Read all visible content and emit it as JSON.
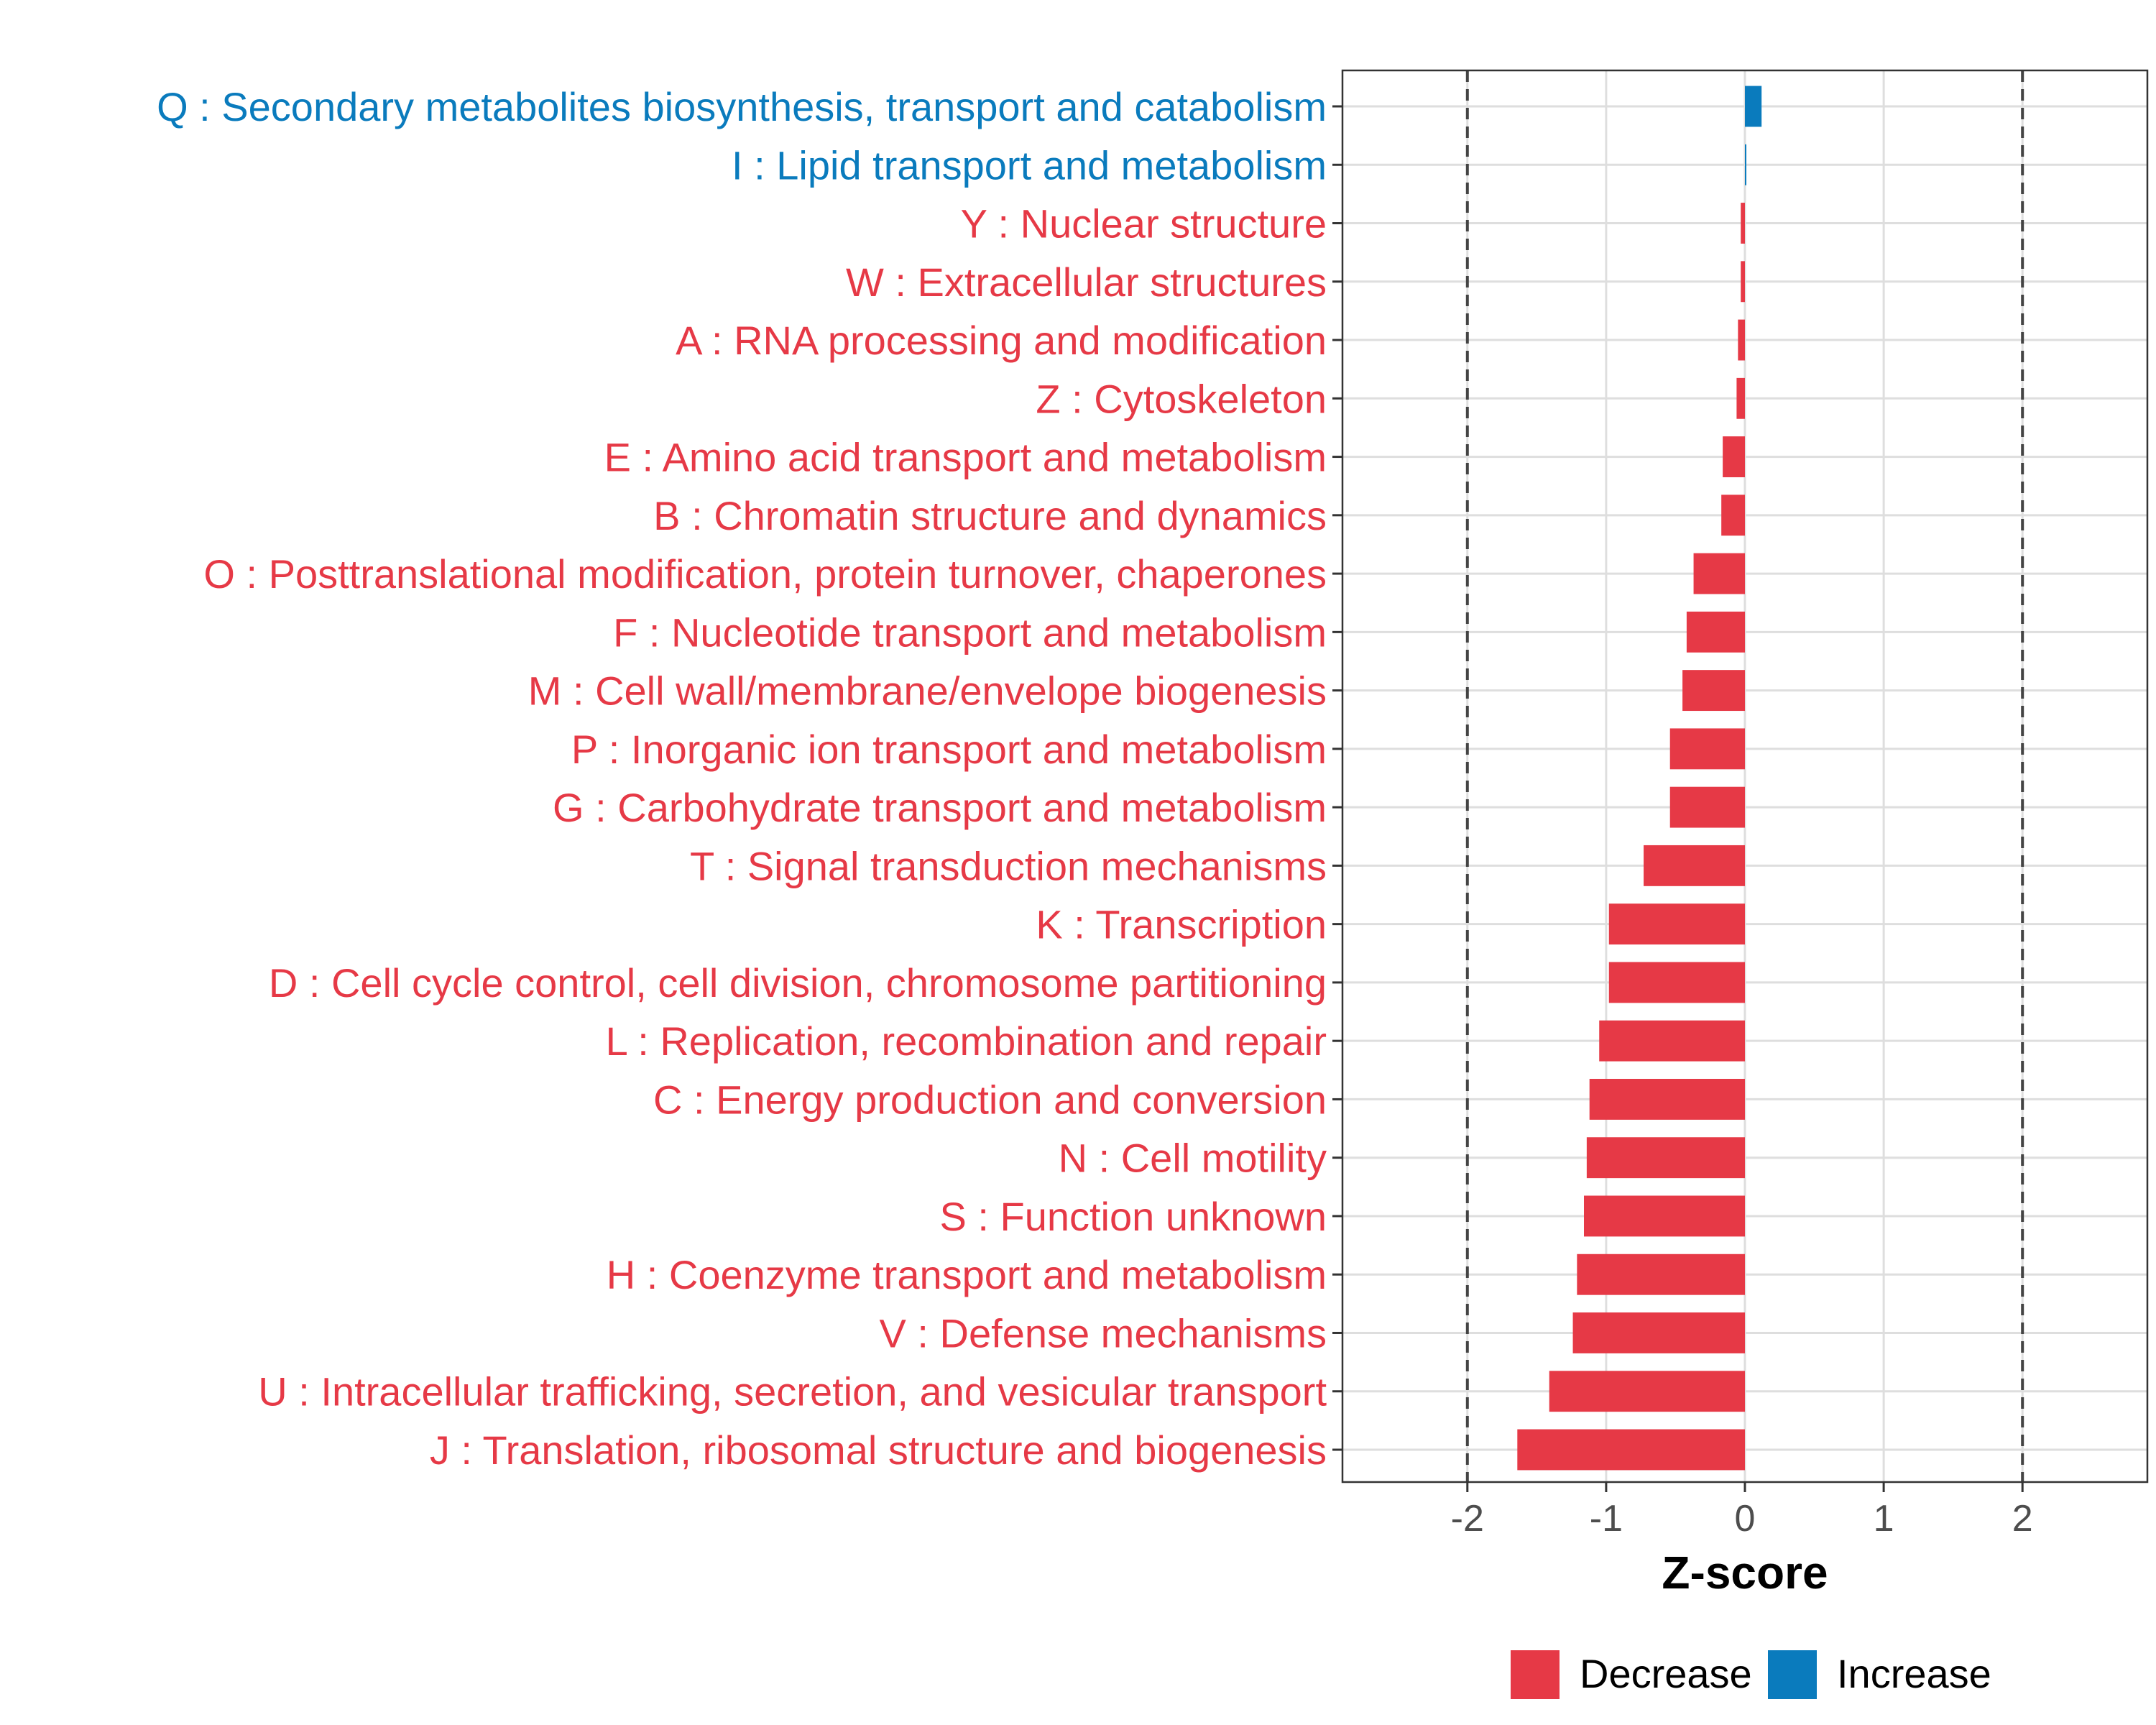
{
  "chart_data": {
    "type": "bar",
    "orientation": "horizontal",
    "title": "",
    "xlabel": "Z-score",
    "ylabel": "",
    "xlim": [
      -2.9,
      2.9
    ],
    "xticks": [
      -2,
      -1,
      0,
      1,
      2
    ],
    "xtick_labels": [
      "-2",
      "-1",
      "0",
      "1",
      "2"
    ],
    "reference_lines": [
      -2,
      2
    ],
    "grid": true,
    "colors": {
      "Decrease": "#e63946",
      "Increase": "#0a7bbd"
    },
    "legend": {
      "position": "bottom",
      "entries": [
        {
          "label": "Decrease",
          "color": "#e63946"
        },
        {
          "label": "Increase",
          "color": "#0a7bbd"
        }
      ]
    },
    "categories": [
      "Q : Secondary metabolites biosynthesis, transport and catabolism",
      "I : Lipid transport and metabolism",
      "Y : Nuclear structure",
      "W : Extracellular structures",
      "A : RNA processing and modification",
      "Z : Cytoskeleton",
      "E : Amino acid transport and metabolism",
      "B : Chromatin structure and dynamics",
      "O : Posttranslational modification, protein turnover, chaperones",
      "F : Nucleotide transport and metabolism",
      "M : Cell wall/membrane/envelope biogenesis",
      "P : Inorganic ion transport and metabolism",
      "G : Carbohydrate transport and metabolism",
      "T : Signal transduction mechanisms",
      "K : Transcription",
      "D : Cell cycle control, cell division, chromosome partitioning",
      "L : Replication, recombination and repair",
      "C : Energy production and conversion",
      "N : Cell motility",
      "S : Function unknown",
      "H : Coenzyme transport and metabolism",
      "V : Defense mechanisms",
      "U : Intracellular trafficking, secretion, and vesicular transport",
      "J : Translation, ribosomal structure and biogenesis"
    ],
    "values": [
      0.12,
      0.01,
      -0.03,
      -0.03,
      -0.05,
      -0.06,
      -0.16,
      -0.17,
      -0.37,
      -0.42,
      -0.45,
      -0.54,
      -0.54,
      -0.73,
      -0.98,
      -0.98,
      -1.05,
      -1.12,
      -1.14,
      -1.16,
      -1.21,
      -1.24,
      -1.41,
      -1.64
    ],
    "direction": [
      "Increase",
      "Increase",
      "Decrease",
      "Decrease",
      "Decrease",
      "Decrease",
      "Decrease",
      "Decrease",
      "Decrease",
      "Decrease",
      "Decrease",
      "Decrease",
      "Decrease",
      "Decrease",
      "Decrease",
      "Decrease",
      "Decrease",
      "Decrease",
      "Decrease",
      "Decrease",
      "Decrease",
      "Decrease",
      "Decrease",
      "Decrease"
    ]
  }
}
